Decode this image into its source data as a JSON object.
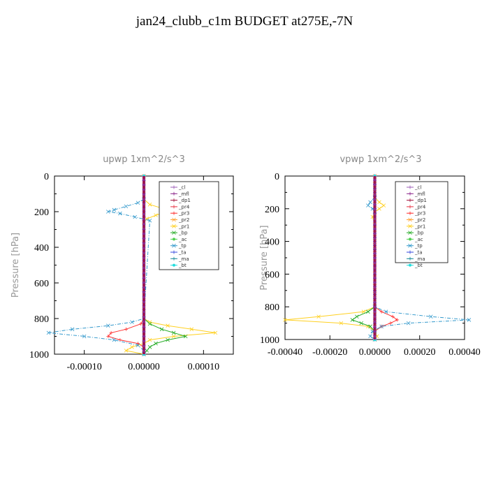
{
  "page_title": "jan24_clubb_c1m  BUDGET at275E,-7N",
  "chart_data": [
    {
      "type": "line",
      "title": "upwp   1xm^2/s^3",
      "ylabel": "Pressure [hPa]",
      "ylim": [
        1000,
        0
      ],
      "xlim": [
        -0.00015,
        0.00015
      ],
      "xticks": [
        -0.0001,
        0.0,
        0.0001
      ],
      "xtick_labels": [
        "-0.00010",
        "0.00000",
        "0.00010"
      ],
      "yticks": [
        0,
        200,
        400,
        600,
        800,
        1000
      ],
      "ytick_labels": [
        "0",
        "200",
        "400",
        "600",
        "800",
        "1000"
      ],
      "legend_position": "top-right",
      "series": [
        {
          "name": "_cl",
          "color": "#9b59b6",
          "marker": "+",
          "p": [
            0,
            1000
          ],
          "x": [
            0,
            0
          ]
        },
        {
          "name": "_mfl",
          "color": "#8e2a8e",
          "marker": "+",
          "p": [
            0,
            1000
          ],
          "x": [
            0,
            0
          ]
        },
        {
          "name": "_dp1",
          "color": "#a0103a",
          "marker": "+",
          "p": [
            0,
            1000
          ],
          "x": [
            0,
            0
          ]
        },
        {
          "name": "_pr4",
          "color": "#e83040",
          "marker": "+",
          "p": [
            0,
            1000
          ],
          "x": [
            0,
            0
          ]
        },
        {
          "name": "_pr3",
          "color": "#ff3030",
          "marker": "+",
          "p": [
            800,
            830,
            860,
            880,
            900,
            920,
            940,
            960,
            1000
          ],
          "x": [
            0,
            -5e-06,
            -3e-05,
            -5.5e-05,
            -6e-05,
            -4e-05,
            -1e-05,
            0,
            0
          ]
        },
        {
          "name": "_pr2",
          "color": "#ffa030",
          "marker": "x",
          "p": [
            0,
            1000
          ],
          "x": [
            0,
            0
          ]
        },
        {
          "name": "_pr1",
          "color": "#ffd020",
          "marker": "x",
          "p": [
            130,
            160,
            180,
            200,
            220,
            240,
            260,
            300,
            800,
            820,
            840,
            860,
            880,
            900,
            920,
            940,
            960,
            980,
            1000
          ],
          "x": [
            0,
            1e-05,
            3e-05,
            4e-05,
            2e-05,
            5e-06,
            0,
            0,
            0,
            1e-05,
            4e-05,
            8e-05,
            0.00012,
            5e-05,
            1e-05,
            0,
            -2e-05,
            -3e-05,
            0
          ]
        },
        {
          "name": "_bp",
          "color": "#22aa22",
          "marker": "x",
          "p": [
            800,
            830,
            860,
            880,
            900,
            920,
            940,
            960,
            980,
            1000
          ],
          "x": [
            0,
            1e-05,
            3e-05,
            5e-05,
            7e-05,
            4e-05,
            2e-05,
            1e-05,
            5e-06,
            0
          ]
        },
        {
          "name": "_ac",
          "color": "#50d050",
          "marker": "o",
          "p": [
            0,
            1000
          ],
          "x": [
            0,
            0
          ]
        },
        {
          "name": "_tp",
          "color": "#3399cc",
          "marker": "x",
          "p": [
            130,
            150,
            170,
            190,
            200,
            210,
            230,
            250,
            800,
            820,
            840,
            860,
            880,
            900,
            920,
            950,
            980,
            1000
          ],
          "x": [
            0,
            -1e-05,
            -3e-05,
            -5e-05,
            -6e-05,
            -4e-05,
            -1.5e-05,
            1e-05,
            0,
            -2e-05,
            -6e-05,
            -0.00012,
            -0.00016,
            -0.0001,
            -5e-05,
            -1e-05,
            0,
            0
          ]
        },
        {
          "name": "_ta",
          "color": "#3344dd",
          "marker": "+",
          "p": [
            0,
            1000
          ],
          "x": [
            0,
            0
          ]
        },
        {
          "name": "_ma",
          "color": "#1a8a99",
          "marker": "-",
          "p": [
            0,
            1000
          ],
          "x": [
            0,
            0
          ]
        },
        {
          "name": "_bt",
          "color": "#22dddd",
          "marker": "o",
          "p": [
            0,
            1000
          ],
          "x": [
            0,
            0
          ]
        }
      ]
    },
    {
      "type": "line",
      "title": "vpwp   1xm^2/s^3",
      "ylabel": "Pressure [hPa]",
      "ylim": [
        1000,
        0
      ],
      "xlim": [
        -0.0004,
        0.0004
      ],
      "xticks": [
        -0.0004,
        -0.0002,
        0.0,
        0.0002,
        0.0004
      ],
      "xtick_labels": [
        "-0.00040",
        "-0.00020",
        "0.00000",
        "0.00020",
        "0.00040"
      ],
      "yticks": [
        0,
        200,
        400,
        600,
        800,
        1000
      ],
      "ytick_labels": [
        "0",
        "200",
        "400",
        "600",
        "800",
        "1000"
      ],
      "legend_position": "top-right",
      "series": [
        {
          "name": "_cl",
          "color": "#9b59b6",
          "marker": "+",
          "p": [
            0,
            1000
          ],
          "x": [
            0,
            0
          ]
        },
        {
          "name": "_mfl",
          "color": "#8e2a8e",
          "marker": "+",
          "p": [
            0,
            1000
          ],
          "x": [
            0,
            0
          ]
        },
        {
          "name": "_dp1",
          "color": "#a0103a",
          "marker": "+",
          "p": [
            0,
            1000
          ],
          "x": [
            0,
            0
          ]
        },
        {
          "name": "_pr4",
          "color": "#e83040",
          "marker": "+",
          "p": [
            0,
            1000
          ],
          "x": [
            0,
            0
          ]
        },
        {
          "name": "_pr3",
          "color": "#ff3030",
          "marker": "+",
          "p": [
            800,
            830,
            860,
            880,
            900,
            920,
            950,
            1000
          ],
          "x": [
            0,
            3e-05,
            8e-05,
            0.0001,
            7e-05,
            3e-05,
            0,
            0
          ]
        },
        {
          "name": "_pr2",
          "color": "#ffa030",
          "marker": "x",
          "p": [
            0,
            1000
          ],
          "x": [
            0,
            0
          ]
        },
        {
          "name": "_pr1",
          "color": "#ffd020",
          "marker": "x",
          "p": [
            130,
            160,
            180,
            200,
            220,
            250,
            300,
            800,
            830,
            860,
            880,
            900,
            920,
            950,
            980,
            1000
          ],
          "x": [
            0,
            2e-05,
            4e-05,
            2e-05,
            0,
            -1e-05,
            0,
            0,
            -5e-05,
            -0.00025,
            -0.0004,
            -0.00015,
            -3e-05,
            0,
            1e-05,
            0
          ]
        },
        {
          "name": "_bp",
          "color": "#22aa22",
          "marker": "x",
          "p": [
            800,
            830,
            860,
            880,
            900,
            920,
            950,
            1000
          ],
          "x": [
            0,
            -3e-05,
            -8e-05,
            -0.0001,
            -6e-05,
            -2e-05,
            0,
            0
          ]
        },
        {
          "name": "_ac",
          "color": "#50d050",
          "marker": "o",
          "p": [
            0,
            1000
          ],
          "x": [
            0,
            0
          ]
        },
        {
          "name": "_tp",
          "color": "#3399cc",
          "marker": "x",
          "p": [
            130,
            160,
            180,
            200,
            220,
            800,
            830,
            860,
            880,
            900,
            920,
            950,
            980,
            1000
          ],
          "x": [
            0,
            -2e-05,
            -3e-05,
            -1e-05,
            0,
            0,
            5e-05,
            0.00025,
            0.00042,
            0.00015,
            3e-05,
            -1e-05,
            -2e-05,
            0
          ]
        },
        {
          "name": "_ta",
          "color": "#3344dd",
          "marker": "+",
          "p": [
            0,
            1000
          ],
          "x": [
            0,
            0
          ]
        },
        {
          "name": "_ma",
          "color": "#1a8a99",
          "marker": "-",
          "p": [
            0,
            1000
          ],
          "x": [
            0,
            0
          ]
        },
        {
          "name": "_bt",
          "color": "#22dddd",
          "marker": "o",
          "p": [
            0,
            1000
          ],
          "x": [
            0,
            0
          ]
        }
      ]
    }
  ]
}
